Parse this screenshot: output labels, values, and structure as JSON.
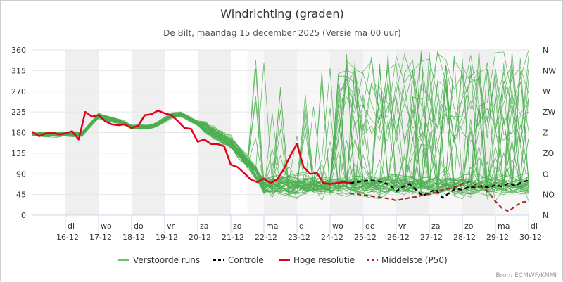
{
  "chart_data": {
    "type": "line",
    "title": "Windrichting (graden)",
    "subtitle": "De Bilt, maandag 15 december 2025 (Versie ma 00 uur)",
    "ylim": [
      0,
      360
    ],
    "yticks": [
      0,
      45,
      90,
      135,
      180,
      225,
      270,
      315,
      360
    ],
    "compass_ticks": [
      "N",
      "NO",
      "O",
      "ZO",
      "Z",
      "ZW",
      "W",
      "NW",
      "N"
    ],
    "x_range_days": [
      0,
      15
    ],
    "x_ticks": [
      {
        "day": 1,
        "weekday": "di",
        "date": "16-12"
      },
      {
        "day": 2,
        "weekday": "wo",
        "date": "17-12"
      },
      {
        "day": 3,
        "weekday": "do",
        "date": "18-12"
      },
      {
        "day": 4,
        "weekday": "vr",
        "date": "19-12"
      },
      {
        "day": 5,
        "weekday": "za",
        "date": "20-12"
      },
      {
        "day": 6,
        "weekday": "zo",
        "date": "21-12"
      },
      {
        "day": 7,
        "weekday": "ma",
        "date": "22-12"
      },
      {
        "day": 8,
        "weekday": "di",
        "date": "23-12"
      },
      {
        "day": 9,
        "weekday": "wo",
        "date": "24-12"
      },
      {
        "day": 10,
        "weekday": "do",
        "date": "25-12"
      },
      {
        "day": 11,
        "weekday": "vr",
        "date": "26-12"
      },
      {
        "day": 12,
        "weekday": "za",
        "date": "27-12"
      },
      {
        "day": 13,
        "weekday": "zo",
        "date": "28-12"
      },
      {
        "day": 14,
        "weekday": "ma",
        "date": "29-12"
      },
      {
        "day": 15,
        "weekday": "di",
        "date": "30-12"
      }
    ],
    "shaded_days": [
      [
        1,
        2
      ],
      [
        3,
        4
      ],
      [
        5,
        6
      ],
      [
        7,
        8
      ],
      [
        9,
        10
      ],
      [
        11,
        12
      ],
      [
        13,
        14
      ]
    ],
    "light_shade_from_day": 6.5,
    "series": [
      {
        "name": "Controle",
        "color": "#000000",
        "dash": "dashed",
        "x": [
          9.6,
          9.8,
          10.0,
          10.2,
          10.4,
          10.6,
          10.8,
          11.0,
          11.2,
          11.4,
          11.6,
          11.8,
          12.0,
          12.2,
          12.4,
          12.6,
          12.8,
          13.0,
          13.2,
          13.4,
          13.6,
          13.8,
          14.0,
          14.2,
          14.4,
          14.6,
          14.8,
          15.0
        ],
        "values": [
          70,
          72,
          74,
          76,
          75,
          72,
          66,
          52,
          62,
          68,
          55,
          42,
          50,
          56,
          38,
          48,
          58,
          55,
          62,
          60,
          64,
          60,
          66,
          62,
          70,
          64,
          72,
          76
        ]
      },
      {
        "name": "Hoge resolutie",
        "color": "#e3001b",
        "dash": "solid",
        "x": [
          0.0,
          0.2,
          0.4,
          0.6,
          0.8,
          1.0,
          1.2,
          1.4,
          1.6,
          1.8,
          2.0,
          2.2,
          2.4,
          2.6,
          2.8,
          3.0,
          3.2,
          3.4,
          3.6,
          3.8,
          4.0,
          4.2,
          4.4,
          4.6,
          4.8,
          5.0,
          5.2,
          5.4,
          5.6,
          5.8,
          6.0,
          6.2,
          6.4,
          6.6,
          6.8,
          7.0,
          7.2,
          7.4,
          7.6,
          7.8,
          8.0,
          8.2,
          8.4,
          8.6,
          8.8,
          9.0,
          9.2,
          9.4,
          9.6
        ],
        "values": [
          182,
          172,
          178,
          180,
          176,
          178,
          183,
          165,
          225,
          215,
          218,
          205,
          198,
          196,
          198,
          190,
          195,
          218,
          220,
          228,
          222,
          218,
          205,
          190,
          188,
          160,
          165,
          155,
          155,
          150,
          110,
          105,
          92,
          78,
          72,
          80,
          70,
          78,
          100,
          130,
          155,
          105,
          90,
          92,
          70,
          68,
          70,
          72,
          70
        ]
      },
      {
        "name": "Middelste (P50)",
        "color": "#a52a2a",
        "dash": "dashed",
        "x": [
          9.6,
          9.8,
          10.0,
          10.2,
          10.4,
          10.6,
          10.8,
          11.0,
          11.2,
          11.4,
          11.6,
          11.8,
          12.0,
          12.2,
          12.4,
          12.6,
          12.8,
          13.0,
          13.2,
          13.4,
          13.6,
          13.8,
          14.0,
          14.2,
          14.4,
          14.6,
          14.8,
          15.0
        ],
        "values": [
          48,
          46,
          44,
          42,
          40,
          38,
          36,
          32,
          35,
          38,
          40,
          44,
          46,
          50,
          55,
          58,
          62,
          68,
          74,
          66,
          60,
          50,
          30,
          15,
          8,
          20,
          28,
          30
        ]
      }
    ],
    "ensemble": {
      "name": "Verstoorde runs",
      "color": "#4caf50",
      "member_count": 50
    }
  },
  "legend": [
    {
      "key": "Verstoorde runs",
      "color": "#6abf69",
      "dash": "solid"
    },
    {
      "key": "Controle",
      "color": "#000000",
      "dash": "dashed"
    },
    {
      "key": "Hoge resolutie",
      "color": "#e3001b",
      "dash": "solid"
    },
    {
      "key": "Middelste (P50)",
      "color": "#a52a2a",
      "dash": "dashed"
    }
  ],
  "credits": "Bron: ECMWF/KNMI"
}
